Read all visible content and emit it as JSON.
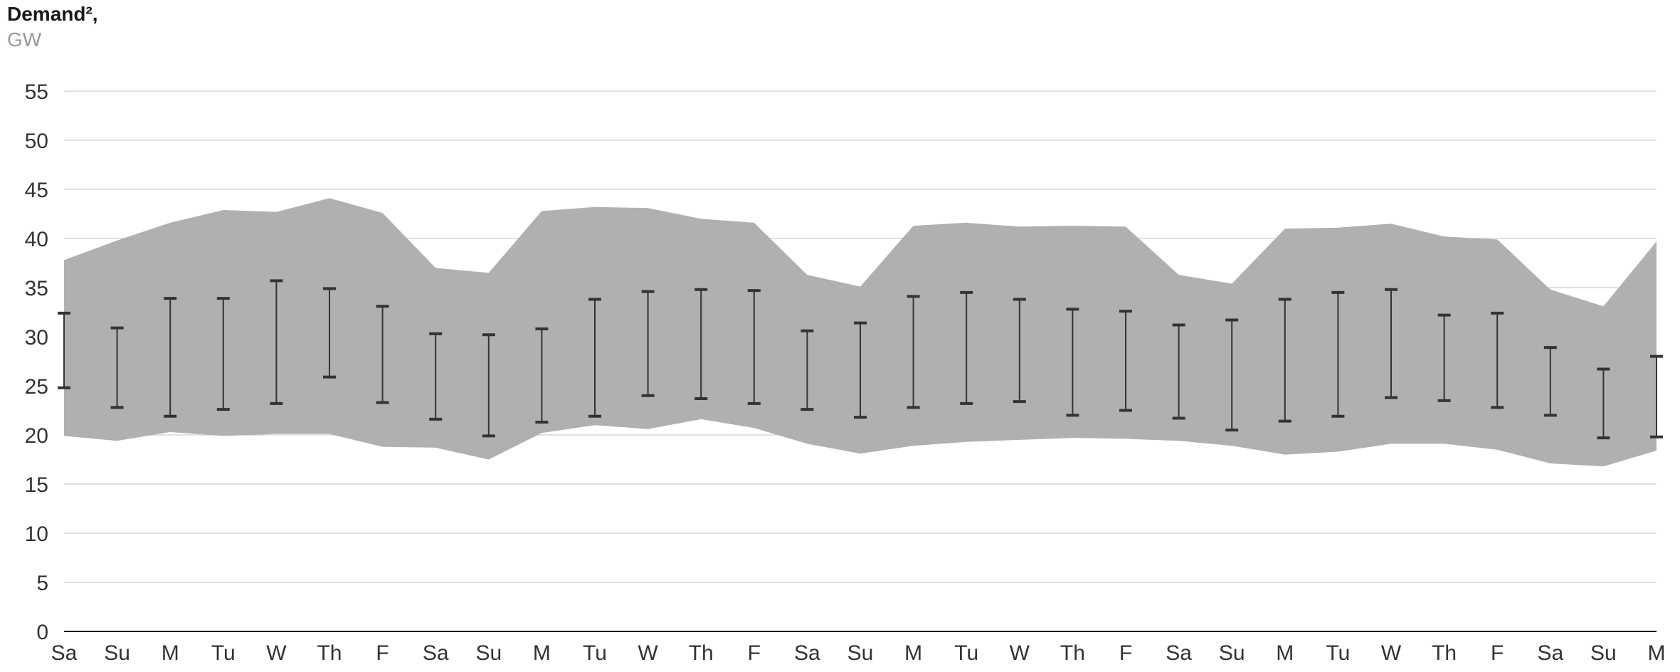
{
  "chart_data": {
    "type": "area",
    "title": "Demand²,",
    "ylabel": "GW",
    "xlabel": "",
    "ylim": [
      0,
      55
    ],
    "yticks": [
      0,
      5,
      10,
      15,
      20,
      25,
      30,
      35,
      40,
      45,
      50,
      55
    ],
    "grid": true,
    "categories": [
      "Sa",
      "Su",
      "M",
      "Tu",
      "W",
      "Th",
      "F",
      "Sa",
      "Su",
      "M",
      "Tu",
      "W",
      "Th",
      "F",
      "Sa",
      "Su",
      "M",
      "Tu",
      "W",
      "Th",
      "F",
      "Sa",
      "Su",
      "M",
      "Tu",
      "W",
      "Th",
      "F",
      "Sa",
      "Su",
      "M"
    ],
    "range_band": {
      "upper": [
        37.8,
        39.8,
        41.6,
        42.9,
        42.7,
        44.1,
        42.6,
        37.0,
        36.5,
        42.8,
        43.2,
        43.1,
        42.0,
        41.6,
        36.3,
        35.1,
        41.3,
        41.6,
        41.2,
        41.3,
        41.2,
        36.3,
        35.4,
        41.0,
        41.1,
        41.5,
        40.2,
        39.9,
        34.8,
        33.1,
        39.7
      ],
      "lower": [
        19.9,
        19.4,
        20.3,
        19.9,
        20.1,
        20.1,
        18.8,
        18.7,
        17.5,
        20.2,
        21.0,
        20.6,
        21.6,
        20.7,
        19.1,
        18.1,
        18.9,
        19.3,
        19.5,
        19.7,
        19.6,
        19.4,
        18.9,
        18.0,
        18.3,
        19.1,
        19.1,
        18.5,
        17.1,
        16.8,
        18.4
      ],
      "color": "#b0b0ae"
    },
    "error_bars": {
      "upper": [
        32.4,
        30.9,
        33.9,
        33.9,
        35.7,
        34.9,
        33.1,
        30.3,
        30.2,
        30.8,
        33.8,
        34.6,
        34.8,
        34.7,
        30.6,
        31.4,
        34.1,
        34.5,
        33.8,
        32.8,
        32.6,
        31.2,
        31.7,
        33.8,
        34.5,
        34.8,
        32.2,
        32.4,
        28.9,
        26.7,
        28.0
      ],
      "lower": [
        24.8,
        22.8,
        21.9,
        22.6,
        23.2,
        25.9,
        23.3,
        21.6,
        19.9,
        21.3,
        21.9,
        24.0,
        23.7,
        23.2,
        22.6,
        21.8,
        22.8,
        23.2,
        23.4,
        22.0,
        22.5,
        21.7,
        20.5,
        21.4,
        21.9,
        23.8,
        23.5,
        22.8,
        22.0,
        19.7,
        19.8
      ],
      "color": "#333333"
    }
  }
}
